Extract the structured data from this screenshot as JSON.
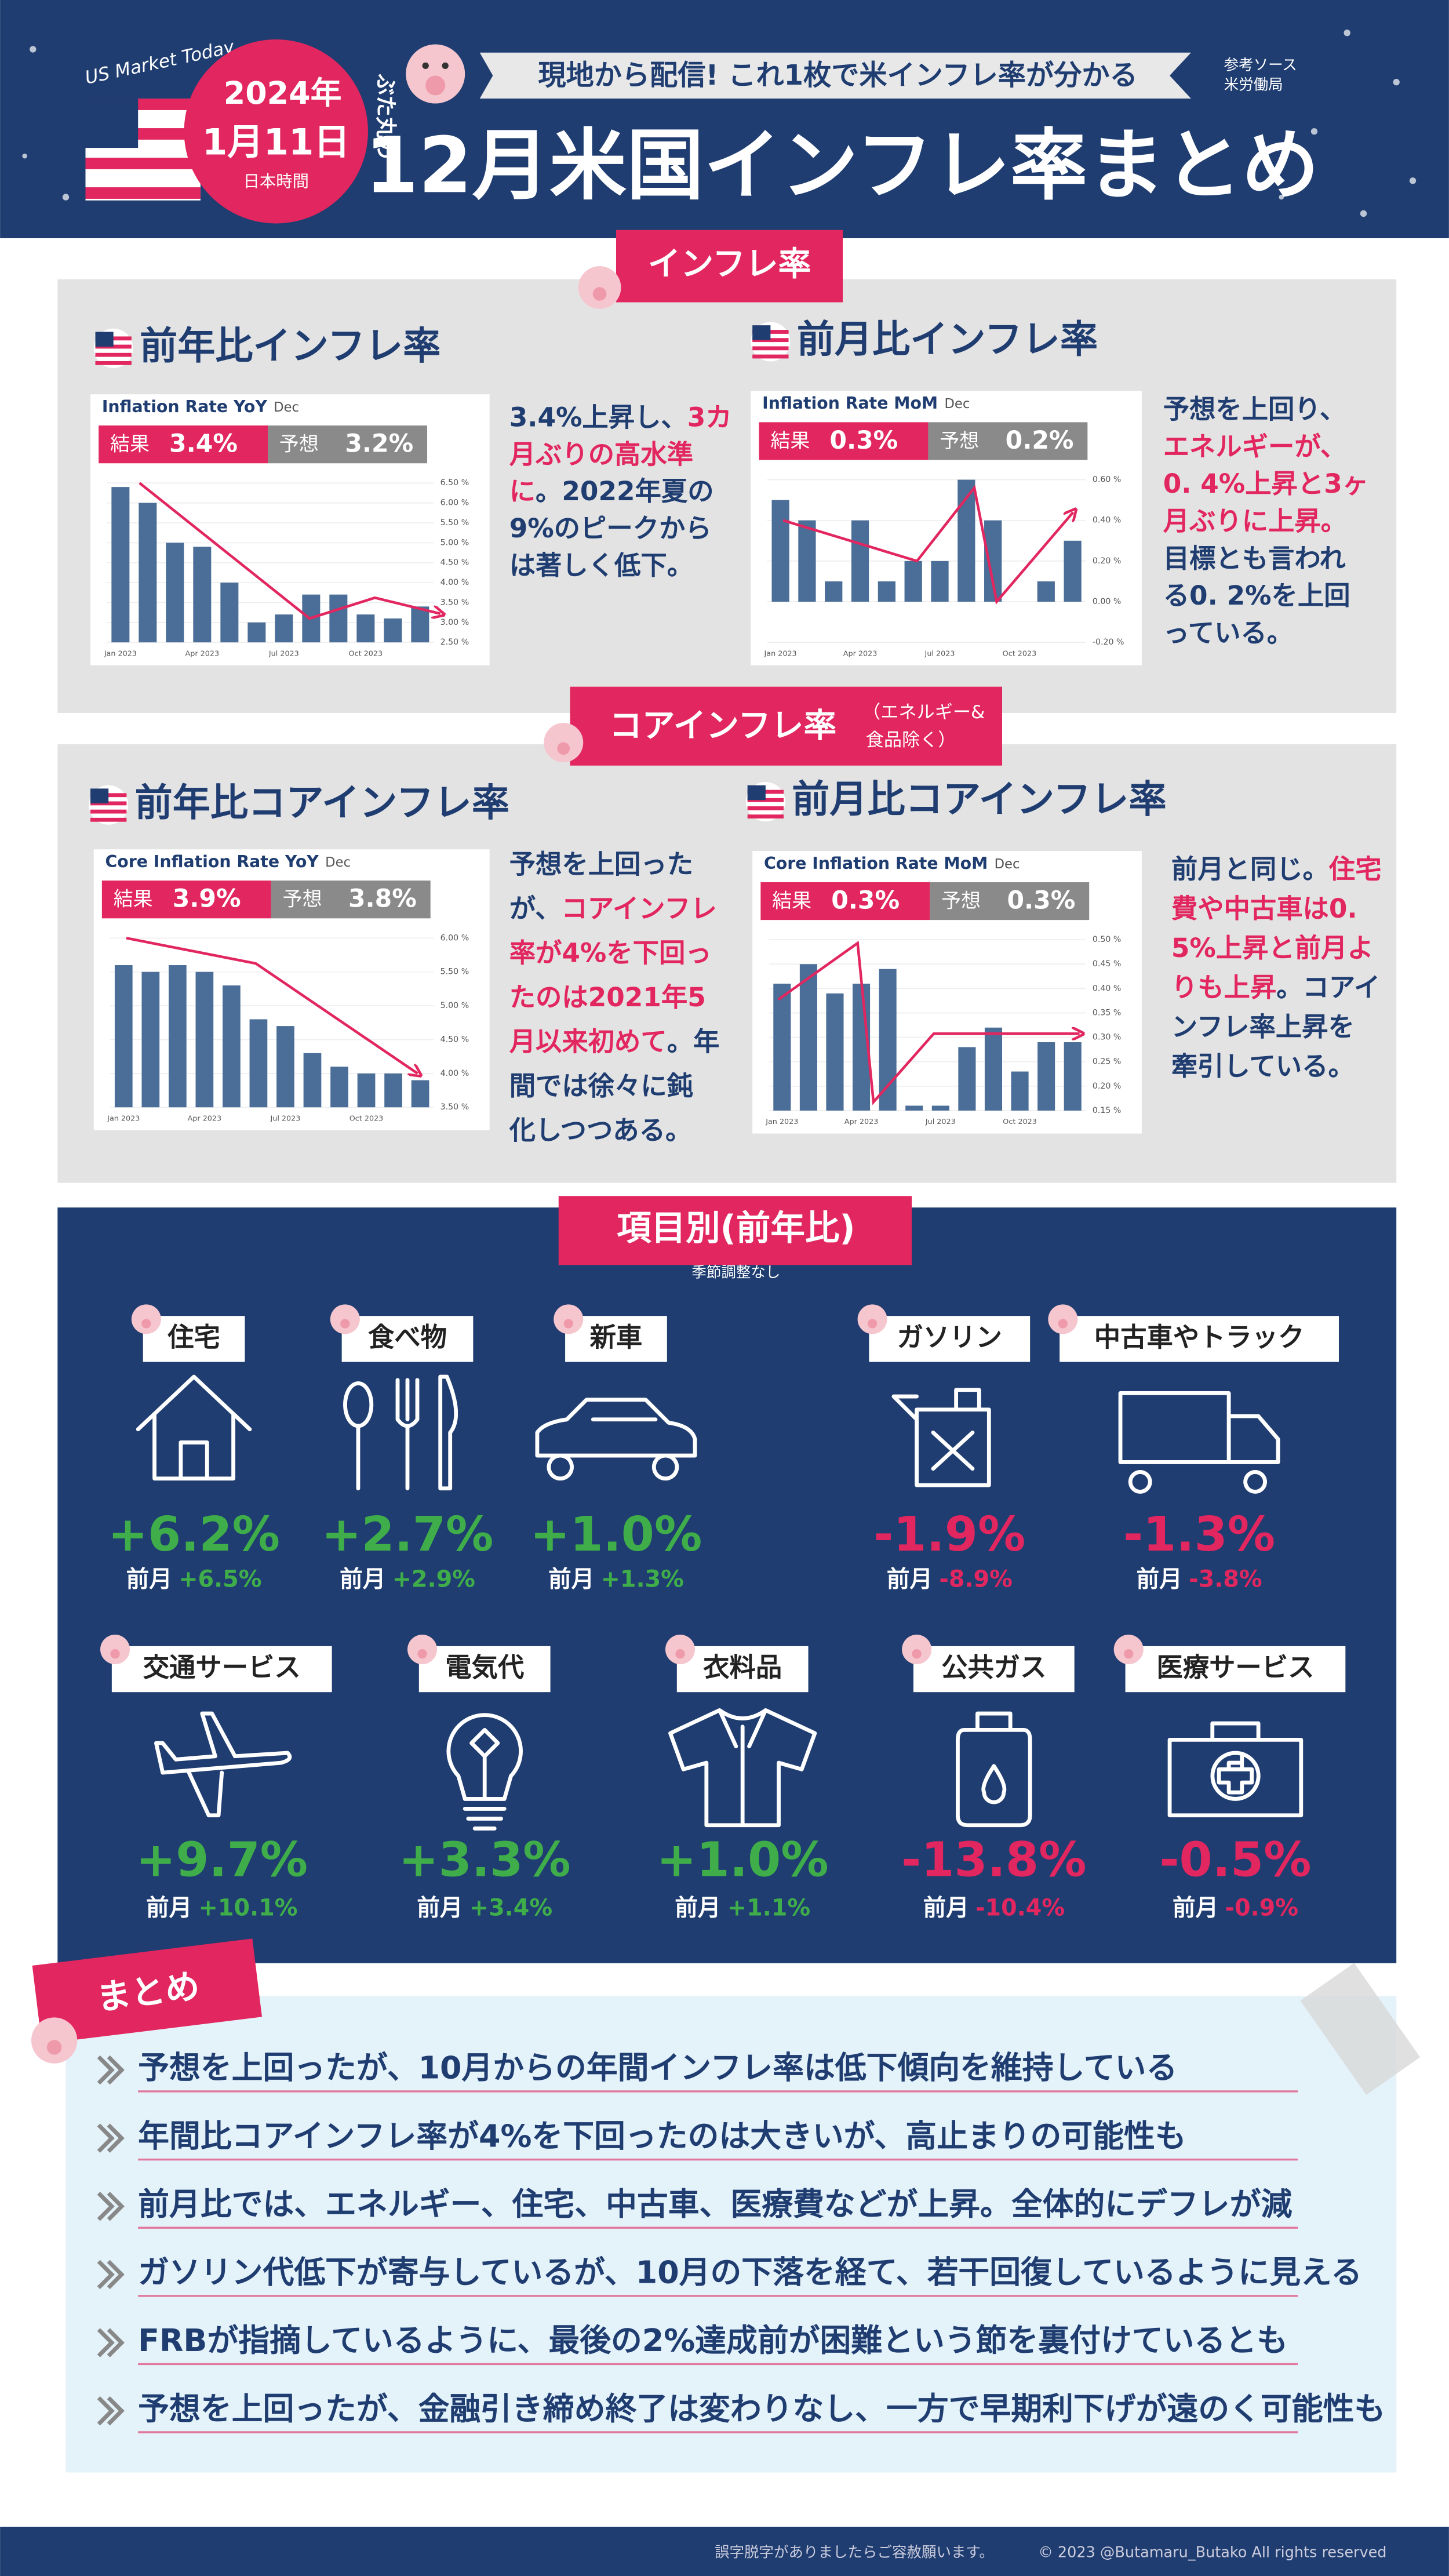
{
  "header": {
    "brand": "US Market Today",
    "mascot": "ぶた丸の",
    "date_year": "2024年",
    "date_day": "1月11日",
    "date_zone": "日本時間",
    "banner": "現地から配信! これ1枚で米インフレ率が分かる",
    "source_label": "参考ソース",
    "source": "米労働局",
    "title": "12月米国インフレ率まとめ"
  },
  "sections": [
    {
      "tag": "インフレ率",
      "panels": [
        {
          "title": "前年比インフレ率",
          "chart": {
            "type": "bar",
            "title": "Inflation Rate YoY",
            "subtitle": "Dec",
            "result": {
              "label": "結果",
              "value": "3.4%"
            },
            "forecast": {
              "label": "予想",
              "value": "3.2%"
            },
            "categories": [
              "Jan 2023",
              null,
              null,
              "Apr 2023",
              null,
              null,
              "Jul 2023",
              null,
              null,
              "Oct 2023",
              null,
              null
            ],
            "values": [
              6.4,
              6.0,
              5.0,
              4.9,
              4.0,
              3.0,
              3.2,
              3.7,
              3.7,
              3.2,
              3.1,
              3.4
            ],
            "color": "#4a6e98",
            "ylim": [
              2.5,
              6.5
            ],
            "yticks": [
              {
                "value": 2.5,
                "label": "2.50 %"
              },
              {
                "value": 3.0,
                "label": "3.00 %"
              },
              {
                "value": 3.5,
                "label": "3.50 %"
              },
              {
                "value": 4.0,
                "label": "4.00 %"
              },
              {
                "value": 4.5,
                "label": "4.50 %"
              },
              {
                "value": 5.0,
                "label": "5.00 %"
              },
              {
                "value": 5.5,
                "label": "5.50 %"
              },
              {
                "value": 6.0,
                "label": "6.00 %"
              },
              {
                "value": 6.5,
                "label": "6.50 %"
              }
            ],
            "grid": true
          },
          "note": [
            [
              {
                "text": "3.4%上昇し、",
                "red": false
              },
              {
                "text": "3カ",
                "red": true
              }
            ],
            [
              {
                "text": "月ぶりの高水準",
                "red": true
              }
            ],
            [
              {
                "text": "に",
                "red": true
              },
              {
                "text": "。2022年夏の",
                "red": false
              }
            ],
            [
              {
                "text": "9%のピークから",
                "red": false
              }
            ],
            [
              {
                "text": "は著しく低下。",
                "red": false
              }
            ]
          ]
        },
        {
          "title": "前月比インフレ率",
          "chart": {
            "type": "bar",
            "title": "Inflation Rate MoM",
            "subtitle": "Dec",
            "result": {
              "label": "結果",
              "value": "0.3%"
            },
            "forecast": {
              "label": "予想",
              "value": "0.2%"
            },
            "categories": [
              "Jan 2023",
              null,
              null,
              "Apr 2023",
              null,
              null,
              "Jul 2023",
              null,
              null,
              "Oct 2023",
              null,
              null
            ],
            "values": [
              0.5,
              0.4,
              0.1,
              0.4,
              0.1,
              0.2,
              0.2,
              0.6,
              0.4,
              0.0,
              0.1,
              0.3
            ],
            "color": "#4a6e98",
            "ylim": [
              -0.2,
              0.6
            ],
            "yticks": [
              {
                "value": -0.2,
                "label": "-0.20 %"
              },
              {
                "value": 0.0,
                "label": "0.00 %"
              },
              {
                "value": 0.2,
                "label": "0.20 %"
              },
              {
                "value": 0.4,
                "label": "0.40 %"
              },
              {
                "value": 0.6,
                "label": "0.60 %"
              }
            ],
            "grid": true
          },
          "note": [
            [
              {
                "text": "予想を上回り、",
                "red": false
              }
            ],
            [
              {
                "text": "エネルギーが、",
                "red": true
              }
            ],
            [
              {
                "text": "0. 4%上昇と3ヶ",
                "red": true
              }
            ],
            [
              {
                "text": "月ぶりに上昇。",
                "red": true
              }
            ],
            [
              {
                "text": "目標とも言われ",
                "red": false
              }
            ],
            [
              {
                "text": "る0. 2%を上回",
                "red": false
              }
            ],
            [
              {
                "text": "っている。",
                "red": false
              }
            ]
          ]
        }
      ]
    },
    {
      "tag": "コアインフレ率",
      "tag_note": [
        "（エネルギー&",
        "食品除く）"
      ],
      "panels": [
        {
          "title": "前年比コアインフレ率",
          "chart": {
            "type": "bar",
            "title": "Core Inflation Rate YoY",
            "subtitle": "Dec",
            "result": {
              "label": "結果",
              "value": "3.9%"
            },
            "forecast": {
              "label": "予想",
              "value": "3.8%"
            },
            "categories": [
              "Jan 2023",
              null,
              null,
              "Apr 2023",
              null,
              null,
              "Jul 2023",
              null,
              null,
              "Oct 2023",
              null,
              null
            ],
            "values": [
              5.6,
              5.5,
              5.6,
              5.5,
              5.3,
              4.8,
              4.7,
              4.3,
              4.1,
              4.0,
              4.0,
              3.9
            ],
            "color": "#4a6e98",
            "ylim": [
              3.5,
              6.0
            ],
            "yticks": [
              {
                "value": 3.5,
                "label": "3.50 %"
              },
              {
                "value": 4.0,
                "label": "4.00 %"
              },
              {
                "value": 4.5,
                "label": "4.50 %"
              },
              {
                "value": 5.0,
                "label": "5.00 %"
              },
              {
                "value": 5.5,
                "label": "5.50 %"
              },
              {
                "value": 6.0,
                "label": "6.00 %"
              }
            ],
            "grid": true
          },
          "note": [
            [
              {
                "text": "予想を上回った",
                "red": false
              }
            ],
            [
              {
                "text": "が、",
                "red": false
              },
              {
                "text": "コアインフレ",
                "red": true
              }
            ],
            [
              {
                "text": "率が4%を下回っ",
                "red": true
              }
            ],
            [
              {
                "text": "たのは2021年5",
                "red": true
              }
            ],
            [
              {
                "text": "月以来初めて",
                "red": true
              },
              {
                "text": "。年",
                "red": false
              }
            ],
            [
              {
                "text": "間では徐々に鈍",
                "red": false
              }
            ],
            [
              {
                "text": "化しつつある。",
                "red": false
              }
            ]
          ]
        },
        {
          "title": "前月比コアインフレ率",
          "chart": {
            "type": "bar",
            "title": "Core Inflation Rate MoM",
            "subtitle": "Dec",
            "result": {
              "label": "結果",
              "value": "0.3%"
            },
            "forecast": {
              "label": "予想",
              "value": "0.3%"
            },
            "categories": [
              "Jan 2023",
              null,
              null,
              "Apr 2023",
              null,
              null,
              "Jul 2023",
              null,
              null,
              "Oct 2023",
              null,
              null
            ],
            "values": [
              0.41,
              0.45,
              0.39,
              0.41,
              0.44,
              0.16,
              0.16,
              0.28,
              0.32,
              0.23,
              0.29,
              0.29
            ],
            "color": "#4a6e98",
            "ylim": [
              0.15,
              0.5
            ],
            "yticks": [
              {
                "value": 0.15,
                "label": "0.15 %"
              },
              {
                "value": 0.2,
                "label": "0.20 %"
              },
              {
                "value": 0.25,
                "label": "0.25 %"
              },
              {
                "value": 0.3,
                "label": "0.30 %"
              },
              {
                "value": 0.35,
                "label": "0.35 %"
              },
              {
                "value": 0.4,
                "label": "0.40 %"
              },
              {
                "value": 0.45,
                "label": "0.45 %"
              },
              {
                "value": 0.5,
                "label": "0.50 %"
              }
            ],
            "grid": true
          },
          "note": [
            [
              {
                "text": "前月と同じ。",
                "red": false
              },
              {
                "text": "住宅",
                "red": true
              }
            ],
            [
              {
                "text": "費や中古車は0.",
                "red": true
              }
            ],
            [
              {
                "text": "5%上昇と前月よ",
                "red": true
              }
            ],
            [
              {
                "text": "りも上昇",
                "red": true
              },
              {
                "text": "。コアイ",
                "red": false
              }
            ],
            [
              {
                "text": "ンフレ率上昇を",
                "red": false
              }
            ],
            [
              {
                "text": "牽引している。",
                "red": false
              }
            ]
          ]
        }
      ]
    }
  ],
  "items": {
    "tag": "項目別(前年比)",
    "tag_note": "季節調整なし",
    "prev_label": "前月",
    "list": [
      {
        "name": "住宅",
        "value": "+6.2%",
        "prev": "+6.5%",
        "color": "#3fae4a"
      },
      {
        "name": "食べ物",
        "value": "+2.7%",
        "prev": "+2.9%",
        "color": "#3fae4a"
      },
      {
        "name": "新車",
        "value": "+1.0%",
        "prev": "+1.3%",
        "color": "#3fae4a"
      },
      {
        "name": "ガソリン",
        "value": "-1.9%",
        "prev": "-8.9%",
        "color": "#e2265f"
      },
      {
        "name": "中古車やトラック",
        "value": "-1.3%",
        "prev": "-3.8%",
        "color": "#e2265f"
      },
      {
        "name": "交通サービス",
        "value": "+9.7%",
        "prev": "+10.1%",
        "color": "#3fae4a"
      },
      {
        "name": "電気代",
        "value": "+3.3%",
        "prev": "+3.4%",
        "color": "#3fae4a"
      },
      {
        "name": "衣料品",
        "value": "+1.0%",
        "prev": "+1.1%",
        "color": "#3fae4a"
      },
      {
        "name": "公共ガス",
        "value": "-13.8%",
        "prev": "-10.4%",
        "color": "#e2265f"
      },
      {
        "name": "医療サービス",
        "value": "-0.5%",
        "prev": "-0.9%",
        "color": "#e2265f"
      }
    ]
  },
  "summary": {
    "tag": "まとめ",
    "points": [
      "予想を上回ったが、10月からの年間インフレ率は低下傾向を維持している",
      "年間比コアインフレ率が4%を下回ったのは大きいが、高止まりの可能性も",
      "前月比では、エネルギー、住宅、中古車、医療費などが上昇。全体的にデフレが減",
      "ガソリン代低下が寄与しているが、10月の下落を経て、若干回復しているように見える",
      "FRBが指摘しているように、最後の2%達成前が困難という節を裏付けているとも",
      "予想を上回ったが、金融引き締め終了は変わりなし、一方で早期利下げが遠のく可能性も"
    ]
  },
  "footer": {
    "note": "誤字脱字がありましたらご容赦願います。",
    "copyright": "© 2023 @Butamaru_Butako All rights reserved"
  }
}
